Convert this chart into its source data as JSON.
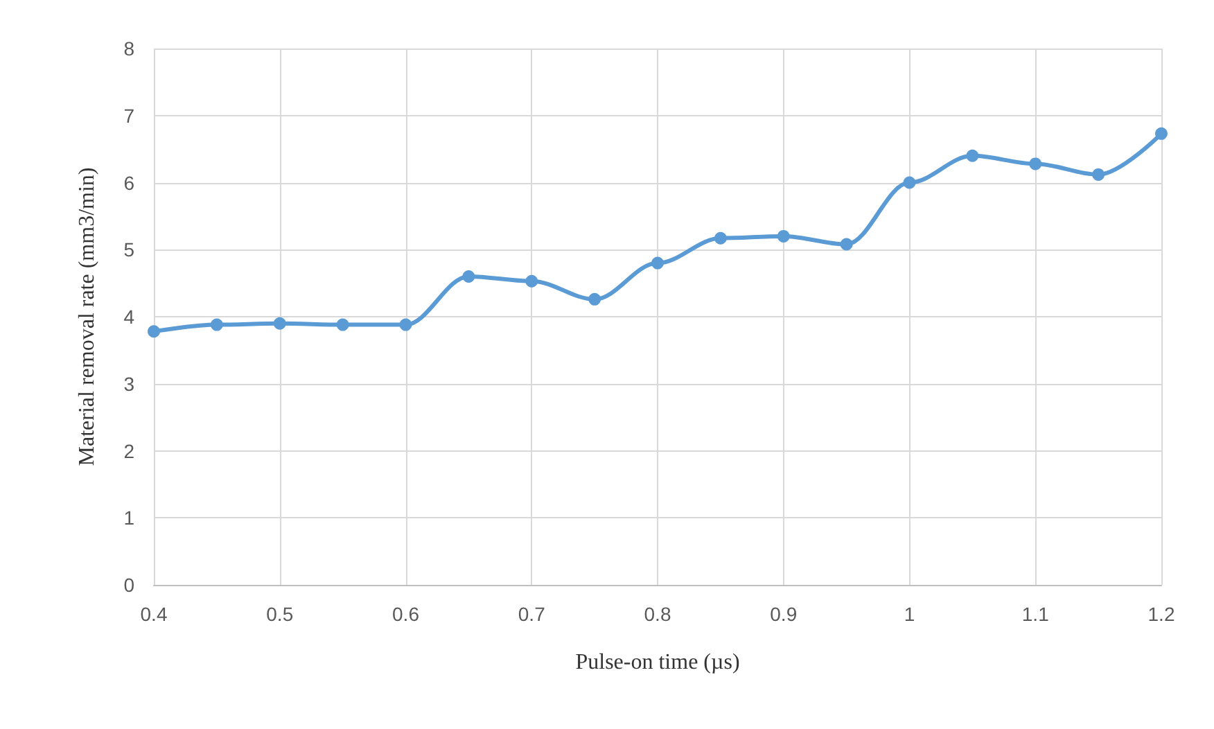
{
  "chart_data": {
    "type": "line",
    "xlabel": "Pulse-on time (µs)",
    "ylabel": "Material removal rate (mm3/min)",
    "x": [
      0.4,
      0.45,
      0.5,
      0.55,
      0.6,
      0.65,
      0.7,
      0.75,
      0.8,
      0.85,
      0.9,
      0.95,
      1,
      1.05,
      1.1,
      1.15,
      1.2
    ],
    "series": [
      {
        "color": "#5b9bd5",
        "values": [
          3.78,
          3.88,
          3.9,
          3.88,
          3.88,
          4.6,
          4.53,
          4.26,
          4.8,
          5.17,
          5.2,
          5.08,
          6.0,
          6.4,
          6.28,
          6.12,
          6.73
        ]
      }
    ],
    "xlim": [
      0.4,
      1.2
    ],
    "xticks": [
      0.4,
      0.5,
      0.6,
      0.7,
      0.8,
      0.9,
      1,
      1.1,
      1.2
    ],
    "ylim": [
      0,
      8
    ],
    "yticks": [
      0,
      1,
      2,
      3,
      4,
      5,
      6,
      7,
      8
    ],
    "grid": true,
    "marker": "circle",
    "line_style": "solid"
  }
}
